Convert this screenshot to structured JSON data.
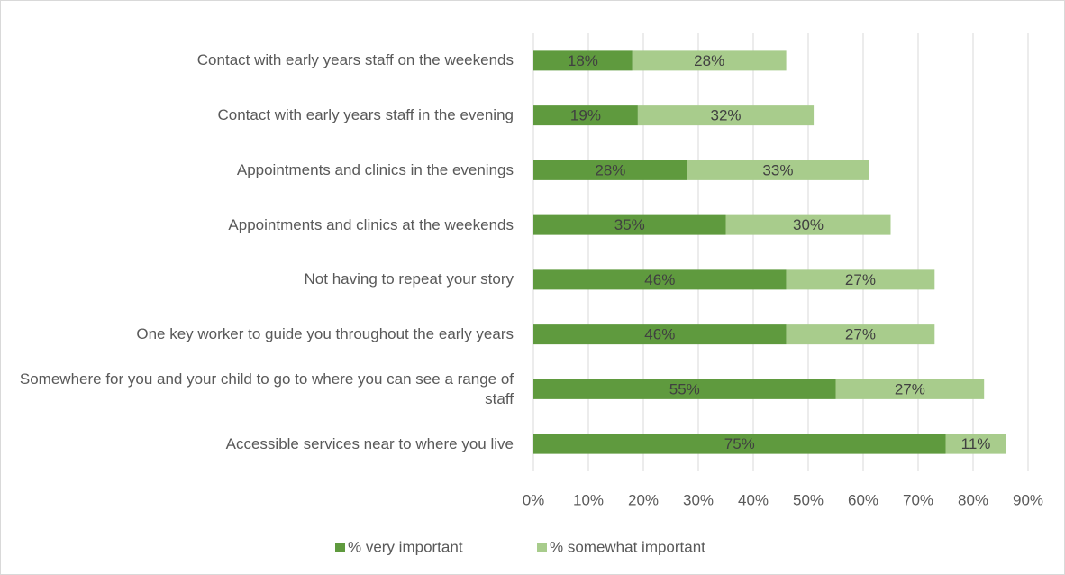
{
  "chart_data": {
    "type": "stacked_bar_horizontal",
    "categories": [
      "Contact with early years staff on the weekends",
      "Contact with early years staff in the evening",
      "Appointments and clinics in the evenings",
      "Appointments and clinics at the weekends",
      "Not having to repeat your story",
      "One key worker to guide you throughout the early years",
      "Somewhere for you and your child to go to where you can see a range of staff",
      "Accessible services near to where you live"
    ],
    "series": [
      {
        "name": "% very important",
        "color": "#5f9a3e",
        "values": [
          18,
          19,
          28,
          35,
          46,
          46,
          55,
          75
        ],
        "value_labels": [
          "18%",
          "19%",
          "28%",
          "35%",
          "46%",
          "46%",
          "55%",
          "75%"
        ]
      },
      {
        "name": "% somewhat important",
        "color": "#a8cc8c",
        "values": [
          28,
          32,
          33,
          30,
          27,
          27,
          27,
          11
        ],
        "value_labels": [
          "28%",
          "32%",
          "33%",
          "30%",
          "27%",
          "27%",
          "27%",
          "11%"
        ]
      }
    ],
    "xlim": [
      0,
      90
    ],
    "xticks": [
      {
        "value": 0,
        "label": "0%"
      },
      {
        "value": 10,
        "label": "10%"
      },
      {
        "value": 20,
        "label": "20%"
      },
      {
        "value": 30,
        "label": "30%"
      },
      {
        "value": 40,
        "label": "40%"
      },
      {
        "value": 50,
        "label": "50%"
      },
      {
        "value": 60,
        "label": "60%"
      },
      {
        "value": 70,
        "label": "70%"
      },
      {
        "value": 80,
        "label": "80%"
      },
      {
        "value": 90,
        "label": "90%"
      }
    ],
    "grid": true,
    "legend": "bottom"
  }
}
